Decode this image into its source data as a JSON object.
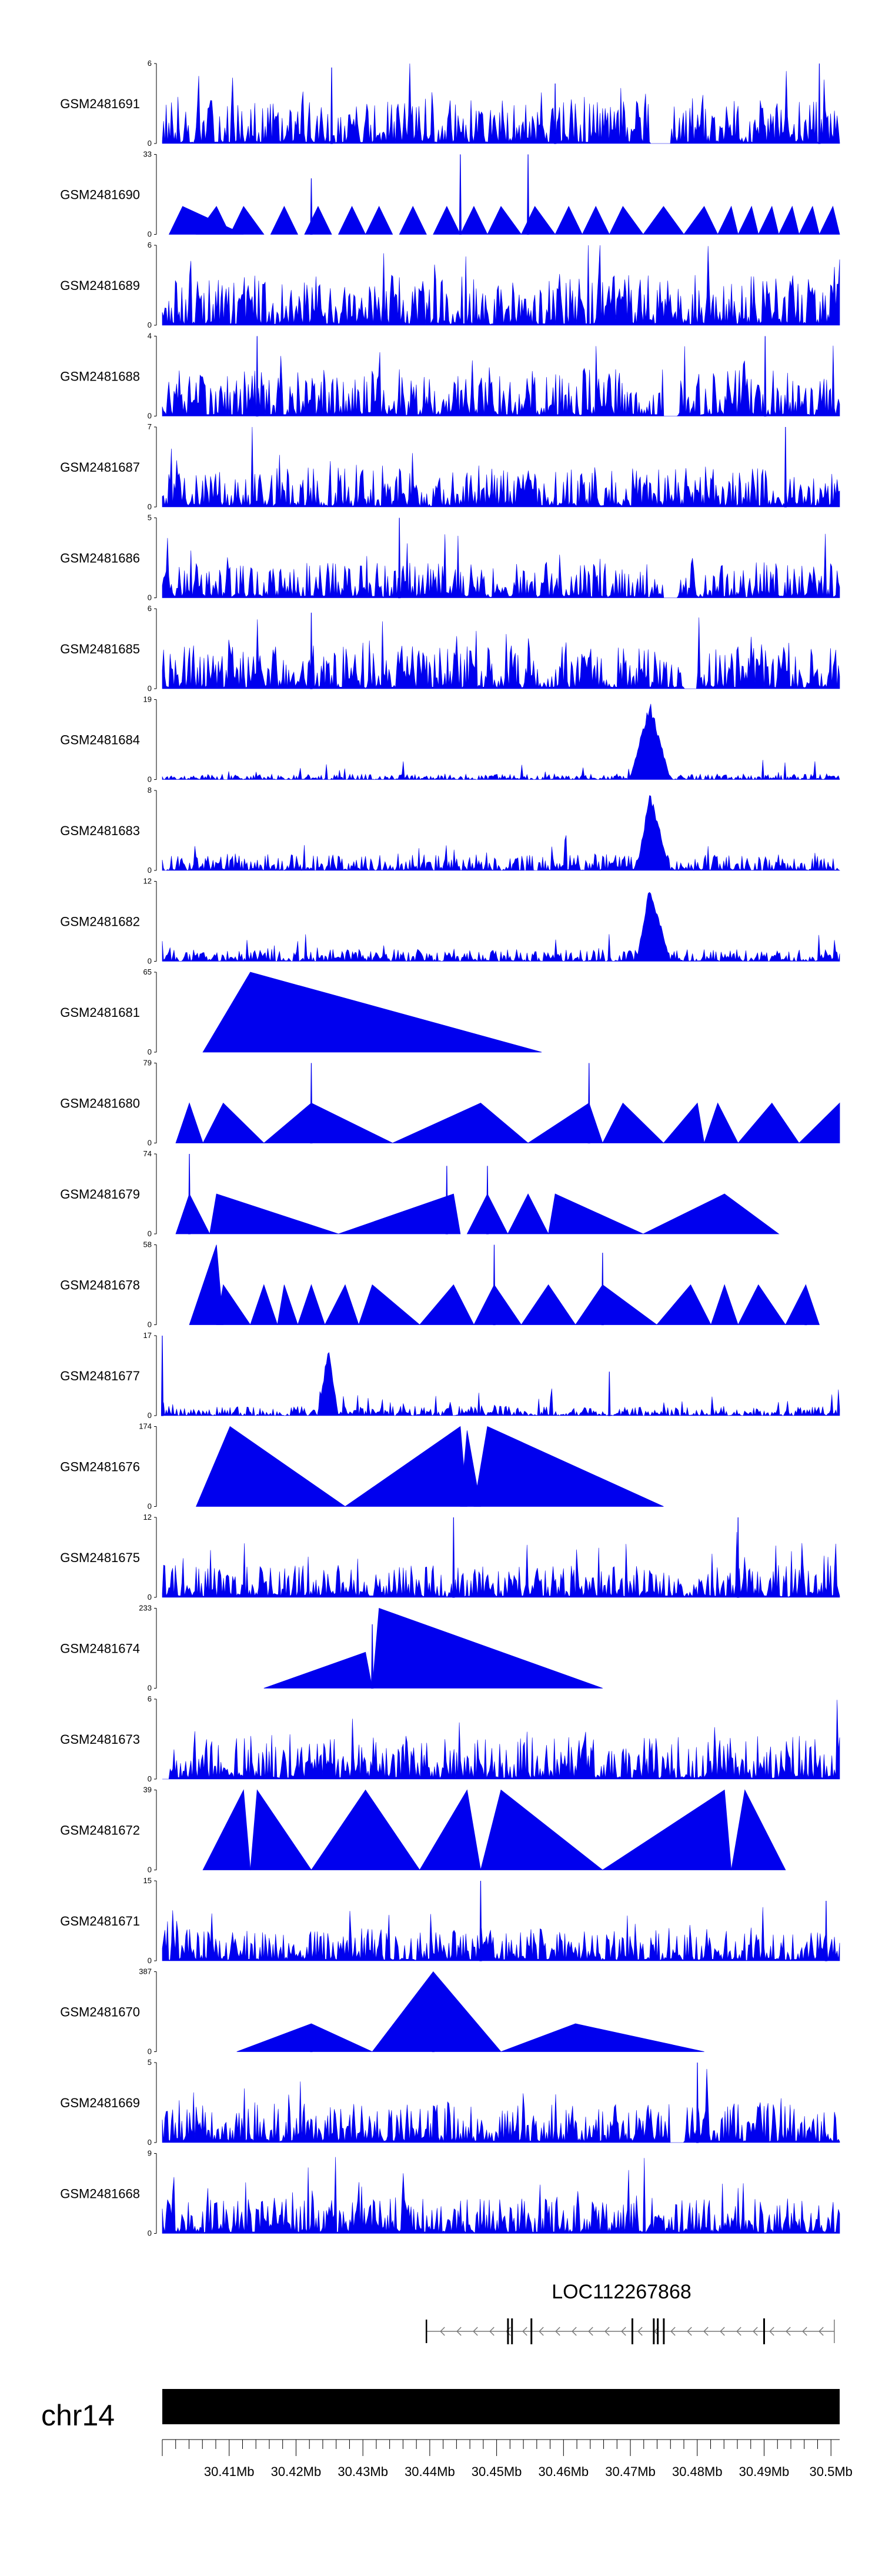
{
  "chart_data": {
    "type": "area",
    "title": "",
    "description": "Gviz-style coverage tracks over a genomic window on chr14",
    "chromosome": "chr14",
    "gene": {
      "name": "LOC112267868",
      "start_mb": 30.4395,
      "end_mb": 30.5005,
      "strand": "-",
      "exon_marks_mb": [
        30.4517,
        30.4523,
        30.4552,
        30.4703,
        30.4735,
        30.4741,
        30.475,
        30.49
      ]
    },
    "x_axis": {
      "unit": "Mb",
      "range_mb": [
        30.4,
        30.5013
      ],
      "ticks": [
        "30.41Mb",
        "30.42Mb",
        "30.43Mb",
        "30.44Mb",
        "30.45Mb",
        "30.46Mb",
        "30.47Mb",
        "30.48Mb",
        "30.49Mb",
        "30.5Mb"
      ],
      "tick_values_mb": [
        30.41,
        30.42,
        30.43,
        30.44,
        30.45,
        30.46,
        30.47,
        30.48,
        30.49,
        30.5
      ]
    },
    "series": [
      {
        "name": "GSM2481691",
        "ymax": 6,
        "ymax_label": "6",
        "ymin_label": "0",
        "kind": "dense",
        "base": 0.6,
        "spikes": [
          [
            0.97,
            1.0
          ],
          [
            0.25,
            0.95
          ],
          [
            0.58,
            0.75
          ]
        ],
        "gaps": [
          [
            0.72,
            0.75
          ]
        ]
      },
      {
        "name": "GSM2481690",
        "ymax": 33,
        "ymax_label": "33",
        "ymin_label": "0",
        "kind": "peaks",
        "peaks": [
          [
            0.01,
            0.12,
            0.03,
            0.35
          ],
          [
            0.05,
            0.1,
            0.08,
            0.35
          ],
          [
            0.1,
            0.15,
            0.12,
            0.35
          ],
          [
            0.16,
            0.2,
            0.18,
            0.35
          ],
          [
            0.21,
            0.25,
            0.23,
            0.35
          ],
          [
            0.26,
            0.3,
            0.28,
            0.35
          ],
          [
            0.3,
            0.34,
            0.32,
            0.35
          ],
          [
            0.35,
            0.39,
            0.37,
            0.35
          ],
          [
            0.4,
            0.44,
            0.42,
            0.35
          ],
          [
            0.44,
            0.48,
            0.46,
            0.35
          ],
          [
            0.48,
            0.53,
            0.5,
            0.35
          ],
          [
            0.53,
            0.58,
            0.55,
            0.35
          ],
          [
            0.58,
            0.62,
            0.6,
            0.35
          ],
          [
            0.62,
            0.66,
            0.64,
            0.35
          ],
          [
            0.66,
            0.71,
            0.68,
            0.35
          ],
          [
            0.71,
            0.77,
            0.74,
            0.35
          ],
          [
            0.77,
            0.82,
            0.8,
            0.35
          ],
          [
            0.82,
            0.85,
            0.84,
            0.35
          ],
          [
            0.85,
            0.88,
            0.87,
            0.35
          ],
          [
            0.88,
            0.91,
            0.9,
            0.35
          ],
          [
            0.91,
            0.94,
            0.93,
            0.35
          ],
          [
            0.94,
            0.97,
            0.96,
            0.35
          ],
          [
            0.97,
            1.0,
            0.99,
            0.35
          ]
        ],
        "spikes": [
          [
            0.44,
            1.0
          ],
          [
            0.54,
            1.0
          ],
          [
            0.22,
            0.7
          ]
        ]
      },
      {
        "name": "GSM2481689",
        "ymax": 6,
        "ymax_label": "6",
        "ymin_label": "0",
        "kind": "dense",
        "base": 0.7,
        "spikes": [],
        "gaps": []
      },
      {
        "name": "GSM2481688",
        "ymax": 4,
        "ymax_label": "4",
        "ymin_label": "0",
        "kind": "dense",
        "base": 0.65,
        "spikes": [
          [
            0.14,
            1.0
          ],
          [
            0.89,
            1.0
          ]
        ],
        "gaps": [
          [
            0.74,
            0.76
          ]
        ]
      },
      {
        "name": "GSM2481687",
        "ymax": 7,
        "ymax_label": "7",
        "ymin_label": "0",
        "kind": "dense",
        "base": 0.55,
        "spikes": [
          [
            0.92,
            1.0
          ]
        ],
        "gaps": []
      },
      {
        "name": "GSM2481686",
        "ymax": 5,
        "ymax_label": "5",
        "ymin_label": "0",
        "kind": "dense",
        "base": 0.5,
        "spikes": [
          [
            0.35,
            1.0
          ]
        ],
        "gaps": [
          [
            0.74,
            0.76
          ]
        ]
      },
      {
        "name": "GSM2481685",
        "ymax": 6,
        "ymax_label": "6",
        "ymin_label": "0",
        "kind": "dense",
        "base": 0.6,
        "spikes": [
          [
            0.22,
            0.95
          ]
        ],
        "gaps": [
          [
            0.77,
            0.79
          ]
        ]
      },
      {
        "name": "GSM2481684",
        "ymax": 19,
        "ymax_label": "19",
        "ymin_label": "0",
        "kind": "lowpeak",
        "base": 0.12,
        "bump": [
          0.7,
          0.72,
          0.74,
          1.0
        ]
      },
      {
        "name": "GSM2481683",
        "ymax": 8,
        "ymax_label": "8",
        "ymin_label": "0",
        "kind": "lowpeak",
        "base": 0.35,
        "bump": [
          0.71,
          0.72,
          0.74,
          1.0
        ]
      },
      {
        "name": "GSM2481682",
        "ymax": 12,
        "ymax_label": "12",
        "ymin_label": "0",
        "kind": "lowpeak",
        "base": 0.25,
        "bump": [
          0.71,
          0.72,
          0.74,
          1.0
        ]
      },
      {
        "name": "GSM2481681",
        "ymax": 65,
        "ymax_label": "65",
        "ymin_label": "0",
        "kind": "peaks",
        "peaks": [
          [
            0.06,
            0.56,
            0.13,
            1.0
          ]
        ],
        "spikes": []
      },
      {
        "name": "GSM2481680",
        "ymax": 79,
        "ymax_label": "79",
        "ymin_label": "0",
        "kind": "peaks",
        "peaks": [
          [
            0.02,
            0.06,
            0.04,
            0.5
          ],
          [
            0.06,
            0.15,
            0.09,
            0.5
          ],
          [
            0.15,
            0.34,
            0.22,
            0.5
          ],
          [
            0.34,
            0.54,
            0.47,
            0.5
          ],
          [
            0.54,
            0.65,
            0.63,
            0.5
          ],
          [
            0.65,
            0.74,
            0.68,
            0.5
          ],
          [
            0.74,
            0.8,
            0.79,
            0.5
          ],
          [
            0.8,
            0.85,
            0.82,
            0.5
          ],
          [
            0.85,
            0.94,
            0.9,
            0.5
          ],
          [
            0.94,
            1.0,
            1.0,
            0.5
          ]
        ],
        "spikes": [
          [
            0.22,
            1.0
          ],
          [
            0.63,
            1.0
          ]
        ]
      },
      {
        "name": "GSM2481679",
        "ymax": 74,
        "ymax_label": "74",
        "ymin_label": "0",
        "kind": "peaks",
        "peaks": [
          [
            0.02,
            0.07,
            0.04,
            0.5
          ],
          [
            0.07,
            0.26,
            0.08,
            0.5
          ],
          [
            0.26,
            0.44,
            0.43,
            0.5
          ],
          [
            0.45,
            0.51,
            0.48,
            0.5
          ],
          [
            0.51,
            0.57,
            0.54,
            0.5
          ],
          [
            0.57,
            0.71,
            0.58,
            0.5
          ],
          [
            0.71,
            0.91,
            0.83,
            0.5
          ]
        ],
        "spikes": [
          [
            0.04,
            1.0
          ],
          [
            0.42,
            0.85
          ],
          [
            0.48,
            0.85
          ]
        ]
      },
      {
        "name": "GSM2481678",
        "ymax": 58,
        "ymax_label": "58",
        "ymin_label": "0",
        "kind": "peaks",
        "peaks": [
          [
            0.04,
            0.09,
            0.08,
            1.0
          ],
          [
            0.08,
            0.13,
            0.09,
            0.5
          ],
          [
            0.13,
            0.17,
            0.15,
            0.5
          ],
          [
            0.17,
            0.2,
            0.18,
            0.5
          ],
          [
            0.2,
            0.24,
            0.22,
            0.5
          ],
          [
            0.24,
            0.29,
            0.27,
            0.5
          ],
          [
            0.29,
            0.38,
            0.31,
            0.5
          ],
          [
            0.38,
            0.46,
            0.43,
            0.5
          ],
          [
            0.46,
            0.53,
            0.49,
            0.5
          ],
          [
            0.53,
            0.61,
            0.57,
            0.5
          ],
          [
            0.61,
            0.73,
            0.65,
            0.5
          ],
          [
            0.73,
            0.81,
            0.78,
            0.5
          ],
          [
            0.81,
            0.85,
            0.83,
            0.5
          ],
          [
            0.85,
            0.92,
            0.88,
            0.5
          ],
          [
            0.92,
            0.97,
            0.95,
            0.5
          ]
        ],
        "spikes": [
          [
            0.49,
            1.0
          ],
          [
            0.65,
            0.9
          ],
          [
            0.95,
            0.5
          ]
        ]
      },
      {
        "name": "GSM2481677",
        "ymax": 17,
        "ymax_label": "17",
        "ymin_label": "0",
        "kind": "lowpeak",
        "base": 0.2,
        "bump": [
          0.24,
          0.245,
          0.25,
          0.9
        ],
        "spikes": [
          [
            0.0,
            1.0
          ],
          [
            0.66,
            0.55
          ]
        ]
      },
      {
        "name": "GSM2481676",
        "ymax": 174,
        "ymax_label": "174",
        "ymin_label": "0",
        "kind": "peaks",
        "peaks": [
          [
            0.05,
            0.27,
            0.1,
            1.0
          ],
          [
            0.27,
            0.45,
            0.44,
            1.0
          ],
          [
            0.44,
            0.47,
            0.45,
            0.95
          ],
          [
            0.46,
            0.74,
            0.48,
            1.0
          ]
        ],
        "spikes": []
      },
      {
        "name": "GSM2481675",
        "ymax": 12,
        "ymax_label": "12",
        "ymin_label": "0",
        "kind": "dense",
        "base": 0.45,
        "spikes": [
          [
            0.43,
            1.0
          ],
          [
            0.85,
            1.0
          ]
        ],
        "gaps": []
      },
      {
        "name": "GSM2481674",
        "ymax": 233,
        "ymax_label": "233",
        "ymin_label": "0",
        "kind": "peaks",
        "peaks": [
          [
            0.15,
            0.31,
            0.3,
            0.45
          ],
          [
            0.31,
            0.65,
            0.32,
            1.0
          ]
        ],
        "spikes": [
          [
            0.31,
            0.8
          ]
        ]
      },
      {
        "name": "GSM2481673",
        "ymax": 6,
        "ymax_label": "6",
        "ymin_label": "0",
        "kind": "dense",
        "base": 0.6,
        "spikes": [],
        "gaps": [
          [
            0.0,
            0.01
          ]
        ]
      },
      {
        "name": "GSM2481672",
        "ymax": 39,
        "ymax_label": "39",
        "ymin_label": "0",
        "kind": "peaks",
        "peaks": [
          [
            0.06,
            0.13,
            0.12,
            1.0
          ],
          [
            0.13,
            0.22,
            0.14,
            1.0
          ],
          [
            0.22,
            0.38,
            0.3,
            1.0
          ],
          [
            0.38,
            0.47,
            0.45,
            1.0
          ],
          [
            0.47,
            0.65,
            0.5,
            1.0
          ],
          [
            0.65,
            0.84,
            0.83,
            1.0
          ],
          [
            0.84,
            0.92,
            0.86,
            1.0
          ]
        ],
        "spikes": []
      },
      {
        "name": "GSM2481671",
        "ymax": 15,
        "ymax_label": "15",
        "ymin_label": "0",
        "kind": "dense",
        "base": 0.45,
        "spikes": [
          [
            0.47,
            1.0
          ],
          [
            0.98,
            0.75
          ]
        ],
        "gaps": []
      },
      {
        "name": "GSM2481670",
        "ymax": 387,
        "ymax_label": "387",
        "ymin_label": "0",
        "kind": "peaks",
        "peaks": [
          [
            0.11,
            0.31,
            0.22,
            0.35
          ],
          [
            0.31,
            0.5,
            0.4,
            1.0
          ],
          [
            0.5,
            0.8,
            0.61,
            0.35
          ]
        ],
        "spikes": [
          [
            0.22,
            0.35
          ],
          [
            0.4,
            1.0
          ]
        ]
      },
      {
        "name": "GSM2481669",
        "ymax": 5,
        "ymax_label": "5",
        "ymin_label": "0",
        "kind": "dense",
        "base": 0.55,
        "spikes": [
          [
            0.79,
            1.0
          ]
        ],
        "gaps": [
          [
            0.75,
            0.77
          ]
        ]
      },
      {
        "name": "GSM2481668",
        "ymax": 9,
        "ymax_label": "9",
        "ymin_label": "0",
        "kind": "dense",
        "base": 0.5,
        "spikes": [],
        "gaps": []
      }
    ],
    "colors": {
      "coverage": "#0000ee",
      "axis": "#000000",
      "ideogram": "#000000",
      "gene": "#000000"
    }
  }
}
